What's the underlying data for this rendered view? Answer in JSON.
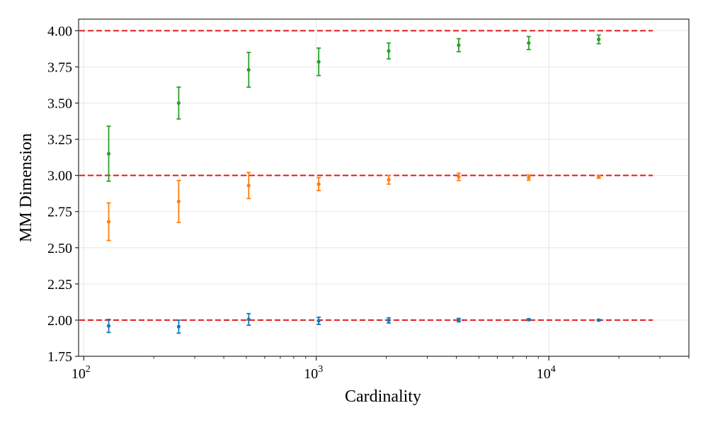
{
  "chart_data": {
    "type": "scatter",
    "title": "",
    "xlabel": "Cardinality",
    "ylabel": "MM Dimension",
    "xscale": "log",
    "xlim": [
      95,
      40000
    ],
    "ylim": [
      1.75,
      4.08
    ],
    "grid": true,
    "legend": "none",
    "x_ticks": [
      {
        "base": "10",
        "exp": "2",
        "value": 100
      },
      {
        "base": "10",
        "exp": "3",
        "value": 1000
      },
      {
        "base": "10",
        "exp": "4",
        "value": 10000
      }
    ],
    "y_ticks": [
      "1.75",
      "2.00",
      "2.25",
      "2.50",
      "2.75",
      "3.00",
      "3.25",
      "3.50",
      "3.75",
      "4.00"
    ],
    "reference_lines": [
      2.0,
      3.0,
      4.0
    ],
    "reference_color": "#e31a1c",
    "x": [
      128,
      256,
      512,
      1024,
      2048,
      4096,
      8192,
      16384
    ],
    "series": [
      {
        "color": "#1f77b4",
        "values": [
          1.96,
          1.955,
          2.005,
          1.995,
          1.998,
          2.0,
          2.003,
          2.0
        ],
        "errors": [
          0.045,
          0.045,
          0.04,
          0.025,
          0.018,
          0.012,
          0.006,
          0.005
        ]
      },
      {
        "color": "#ff7f0e",
        "values": [
          2.68,
          2.82,
          2.93,
          2.94,
          2.97,
          2.99,
          2.985,
          2.99
        ],
        "errors": [
          0.13,
          0.145,
          0.09,
          0.045,
          0.03,
          0.025,
          0.018,
          0.01
        ]
      },
      {
        "color": "#2ca02c",
        "values": [
          3.15,
          3.5,
          3.73,
          3.785,
          3.86,
          3.9,
          3.915,
          3.94
        ],
        "errors": [
          0.19,
          0.11,
          0.12,
          0.095,
          0.055,
          0.045,
          0.045,
          0.03
        ]
      }
    ]
  }
}
